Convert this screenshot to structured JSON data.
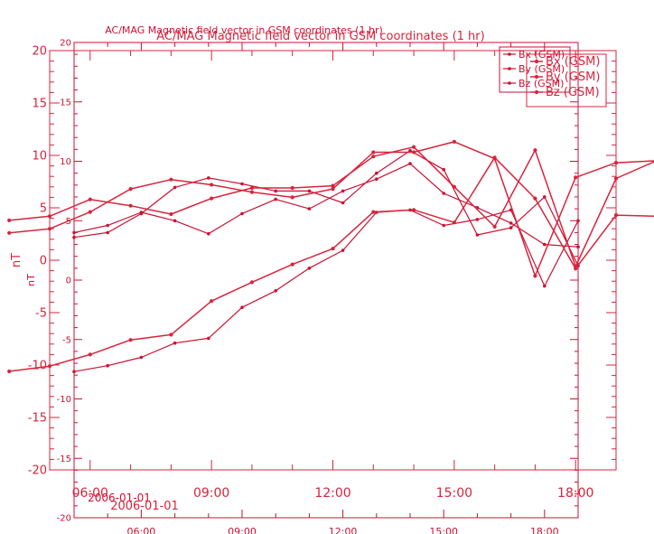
{
  "chart_data": [
    {
      "type": "line",
      "title": "AC/MAG  Magnetic field vector in GSM coordinates (1 hr)",
      "ylabel": "nT",
      "xlabel": "",
      "ylim": [
        -20,
        20
      ],
      "yticks": [
        -20,
        -15,
        -10,
        -5,
        0,
        5,
        10,
        15,
        20
      ],
      "xlim": [
        "2006-01-01 04:00",
        "2006-01-01 19:00"
      ],
      "xticks": [
        "06:00",
        "09:00",
        "12:00",
        "15:00",
        "18:00"
      ],
      "xdate_label": "2006-01-01",
      "legend": "top-right",
      "color": "#cc1133",
      "x": [
        "04:00",
        "05:00",
        "06:00",
        "07:00",
        "08:00",
        "09:00",
        "10:00",
        "11:00",
        "12:00",
        "13:00",
        "14:00",
        "15:00",
        "16:00",
        "17:00",
        "18:00",
        "19:00"
      ],
      "series": [
        {
          "name": "Bx (GSM)",
          "values": [
            4.0,
            4.6,
            5.7,
            5.0,
            3.9,
            5.6,
            6.8,
            6.0,
            7.5,
            8.5,
            9.8,
            7.3,
            6.1,
            4.8,
            3.0,
            2.8
          ]
        },
        {
          "name": "By (GSM)",
          "values": [
            3.6,
            4.0,
            5.6,
            7.8,
            8.6,
            8.1,
            7.5,
            7.5,
            6.5,
            9.0,
            10.9,
            9.3,
            3.8,
            4.4,
            7.0,
            1.2
          ]
        },
        {
          "name": "Bz (GSM)",
          "values": [
            -7.7,
            -7.2,
            -6.5,
            -5.3,
            -4.9,
            -2.3,
            -0.9,
            1.0,
            2.5,
            5.7,
            5.9,
            4.6,
            5.1,
            5.9,
            -0.5,
            5.0
          ]
        }
      ]
    },
    {
      "type": "line",
      "title": "AC/MAG  Magnetic field vector in GSM coordinates (1 hr)",
      "ylabel": "nT",
      "xlabel": "",
      "ylim": [
        -20,
        20
      ],
      "yticks": [
        -20,
        -15,
        -10,
        -5,
        0,
        5,
        10,
        15,
        20
      ],
      "xlim": [
        "2006-01-01 05:00",
        "2006-01-01 19:00"
      ],
      "xticks": [
        "06:00",
        "09:00",
        "12:00",
        "15:00",
        "18:00"
      ],
      "xdate_label": "2006-01-01",
      "legend": "top-right",
      "color": "#d8243c",
      "x": [
        "04:00",
        "05:00",
        "06:00",
        "07:00",
        "08:00",
        "09:00",
        "10:00",
        "11:00",
        "12:00",
        "13:00",
        "14:00",
        "15:00",
        "16:00",
        "17:00",
        "18:00",
        "19:00",
        "20:00"
      ],
      "series": [
        {
          "name": "Bx (GSM)",
          "values": [
            2.6,
            3.0,
            4.6,
            6.8,
            7.7,
            7.2,
            6.5,
            6.0,
            6.8,
            10.3,
            10.3,
            11.3,
            9.7,
            -1.5,
            7.9,
            9.3,
            9.5
          ]
        },
        {
          "name": "By (GSM)",
          "values": [
            3.8,
            4.2,
            5.8,
            5.2,
            4.4,
            5.9,
            6.9,
            6.9,
            7.1,
            9.9,
            10.8,
            7.0,
            3.2,
            10.5,
            -0.6,
            7.8,
            9.5
          ]
        },
        {
          "name": "Bz (GSM)",
          "values": [
            -10.6,
            -10.1,
            -9.0,
            -7.6,
            -7.1,
            -3.9,
            -2.1,
            -0.4,
            1.1,
            4.6,
            4.8,
            3.6,
            9.8,
            5.9,
            -0.8,
            4.3,
            4.2
          ]
        }
      ]
    }
  ]
}
